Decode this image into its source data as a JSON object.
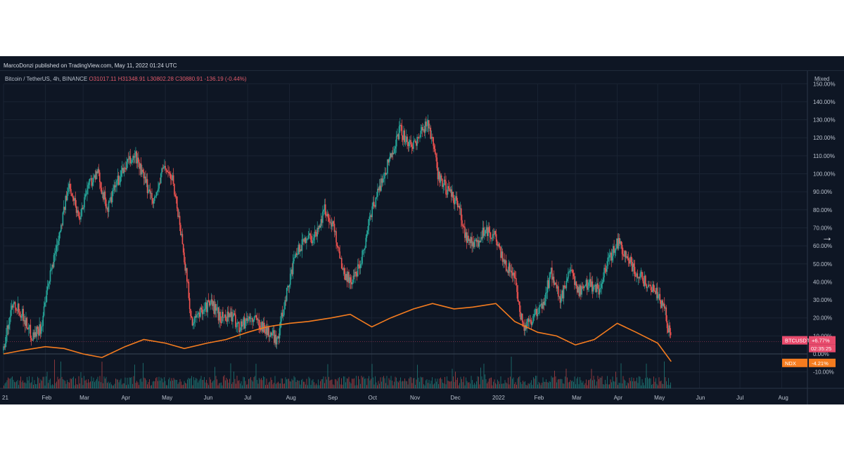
{
  "header": {
    "attribution": "MarcoDonzi published on TradingView.com, May 11, 2022 01:24 UTC"
  },
  "legend": {
    "symbol": "Bitcoin / TetherUS, 4h, BINANCE",
    "open": "O31017.11",
    "high": "H31348.91",
    "low": "L30802.28",
    "close": "C30880.91",
    "change": "-136.19 (-0.44%)"
  },
  "scale_mode": "Mixed",
  "scale_arrow": "→",
  "colors": {
    "background": "#0e1624",
    "up": "#26a69a",
    "down": "#ef5350",
    "ndx": "#f57c1f",
    "btc_badge": "#e84a6c",
    "grid": "#1a2433",
    "text": "#b9c1cd"
  },
  "chart_data": {
    "type": "line",
    "title": "",
    "xlabel": "",
    "ylabel": "",
    "ylim": [
      -10,
      150
    ],
    "y_ticks": [
      "-10.00%",
      "0.00%",
      "10.00%",
      "20.00%",
      "30.00%",
      "40.00%",
      "50.00%",
      "60.00%",
      "70.00%",
      "80.00%",
      "90.00%",
      "100.00%",
      "110.00%",
      "120.00%",
      "130.00%",
      "140.00%",
      "150.00%"
    ],
    "x_ticks": [
      "21",
      "Feb",
      "Mar",
      "Apr",
      "May",
      "Jun",
      "Jul",
      "Aug",
      "Sep",
      "Oct",
      "Nov",
      "Dec",
      "2022",
      "Feb",
      "Mar",
      "Apr",
      "May",
      "Jun",
      "Jul",
      "Aug"
    ],
    "grid": true,
    "series": [
      {
        "name": "BTCUSDT",
        "style": "candlestick",
        "last_value_label": "+6.77%",
        "countdown": "02:35:25",
        "x": [
          "2021-01-01",
          "2021-01-08",
          "2021-01-15",
          "2021-01-22",
          "2021-01-29",
          "2021-02-05",
          "2021-02-12",
          "2021-02-19",
          "2021-02-26",
          "2021-03-05",
          "2021-03-12",
          "2021-03-19",
          "2021-03-26",
          "2021-04-02",
          "2021-04-09",
          "2021-04-16",
          "2021-04-23",
          "2021-04-30",
          "2021-05-07",
          "2021-05-14",
          "2021-05-21",
          "2021-05-28",
          "2021-06-04",
          "2021-06-11",
          "2021-06-18",
          "2021-06-25",
          "2021-07-02",
          "2021-07-09",
          "2021-07-16",
          "2021-07-23",
          "2021-07-30",
          "2021-08-06",
          "2021-08-13",
          "2021-08-20",
          "2021-08-27",
          "2021-09-03",
          "2021-09-10",
          "2021-09-17",
          "2021-09-24",
          "2021-10-01",
          "2021-10-08",
          "2021-10-15",
          "2021-10-22",
          "2021-10-29",
          "2021-11-05",
          "2021-11-12",
          "2021-11-19",
          "2021-11-26",
          "2021-12-03",
          "2021-12-10",
          "2021-12-17",
          "2021-12-24",
          "2021-12-31",
          "2022-01-07",
          "2022-01-14",
          "2022-01-21",
          "2022-01-28",
          "2022-02-04",
          "2022-02-11",
          "2022-02-18",
          "2022-02-25",
          "2022-03-04",
          "2022-03-11",
          "2022-03-18",
          "2022-03-25",
          "2022-04-01",
          "2022-04-08",
          "2022-04-15",
          "2022-04-22",
          "2022-04-29",
          "2022-05-06",
          "2022-05-11"
        ],
        "values": [
          2,
          30,
          22,
          10,
          15,
          45,
          70,
          95,
          75,
          95,
          100,
          80,
          95,
          105,
          110,
          95,
          85,
          105,
          95,
          60,
          15,
          25,
          28,
          20,
          22,
          15,
          20,
          18,
          12,
          8,
          35,
          55,
          65,
          65,
          80,
          70,
          45,
          40,
          55,
          80,
          95,
          110,
          125,
          115,
          120,
          130,
          100,
          90,
          85,
          65,
          60,
          70,
          65,
          50,
          45,
          15,
          20,
          25,
          45,
          30,
          45,
          35,
          40,
          35,
          50,
          62,
          55,
          45,
          40,
          35,
          25,
          6.77
        ]
      },
      {
        "name": "NDX",
        "style": "line",
        "last_value_label": "-4.21%",
        "x": [
          "2021-01-01",
          "2021-01-15",
          "2021-02-01",
          "2021-02-15",
          "2021-03-01",
          "2021-03-15",
          "2021-04-01",
          "2021-04-15",
          "2021-05-01",
          "2021-05-15",
          "2021-06-01",
          "2021-06-15",
          "2021-07-01",
          "2021-07-15",
          "2021-08-01",
          "2021-08-15",
          "2021-09-01",
          "2021-09-15",
          "2021-10-01",
          "2021-10-15",
          "2021-11-01",
          "2021-11-15",
          "2021-12-01",
          "2021-12-15",
          "2022-01-01",
          "2022-01-15",
          "2022-02-01",
          "2022-02-15",
          "2022-03-01",
          "2022-03-15",
          "2022-04-01",
          "2022-04-15",
          "2022-05-01",
          "2022-05-11"
        ],
        "values": [
          0,
          2,
          4,
          3,
          0,
          -2,
          4,
          8,
          6,
          3,
          6,
          8,
          12,
          15,
          17,
          18,
          20,
          22,
          15,
          20,
          25,
          28,
          25,
          26,
          28,
          18,
          12,
          10,
          5,
          8,
          17,
          12,
          6,
          -4.21
        ]
      }
    ],
    "volume_style": "histogram",
    "price_scale": "Mixed"
  }
}
